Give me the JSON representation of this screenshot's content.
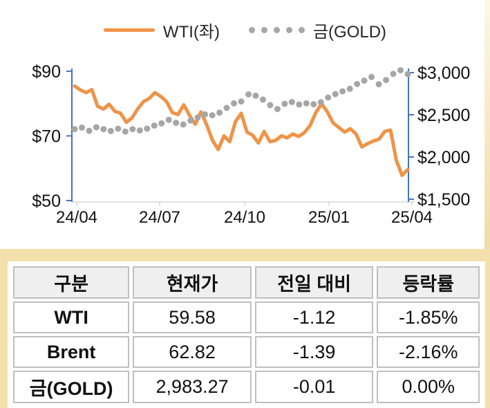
{
  "legend": {
    "wti_label": "WTI(좌)",
    "gold_label": "금(GOLD)"
  },
  "chart_data": {
    "type": "line",
    "x_axis": {
      "tick_labels": [
        "24/04",
        "24/07",
        "24/10",
        "25/01",
        "25/04"
      ]
    },
    "left_axis": {
      "label_series": "WTI(좌)",
      "min": 50,
      "max": 90,
      "tick_labels": [
        "$90",
        "$70",
        "$50"
      ],
      "tick_values": [
        90,
        70,
        50
      ]
    },
    "right_axis": {
      "label_series": "금(GOLD)",
      "min": 1500,
      "max": 3000,
      "tick_labels": [
        "$3,000",
        "$2,500",
        "$2,000",
        "$1,500"
      ],
      "tick_values": [
        3000,
        2500,
        2000,
        1500
      ]
    },
    "series": [
      {
        "name": "WTI(좌)",
        "style": "solid-line",
        "axis": "left",
        "color": "#ef9347",
        "values": [
          85.4,
          84.2,
          83.4,
          84.3,
          79.2,
          78.3,
          79.8,
          77.6,
          77.0,
          74.2,
          75.6,
          78.4,
          80.6,
          81.6,
          83.4,
          82.2,
          80.6,
          77.2,
          76.6,
          79.6,
          76.4,
          73.6,
          77.4,
          73.4,
          68.6,
          65.8,
          70.0,
          68.2,
          74.4,
          77.0,
          71.2,
          70.2,
          67.8,
          71.4,
          68.2,
          68.6,
          70.0,
          69.4,
          70.6,
          69.8,
          71.0,
          73.2,
          77.2,
          80.0,
          77.4,
          74.0,
          72.6,
          71.2,
          72.2,
          70.6,
          66.6,
          67.6,
          68.4,
          69.0,
          71.4,
          71.8,
          62.5,
          57.8,
          59.58
        ]
      },
      {
        "name": "금(GOLD)",
        "style": "dotted",
        "axis": "right",
        "color": "#a6a6a6",
        "values": [
          2330,
          2348,
          2310,
          2352,
          2330,
          2308,
          2335,
          2302,
          2330,
          2315,
          2335,
          2372,
          2398,
          2440,
          2405,
          2385,
          2432,
          2470,
          2505,
          2495,
          2525,
          2582,
          2635,
          2658,
          2742,
          2726,
          2680,
          2615,
          2568,
          2630,
          2652,
          2622,
          2636,
          2625,
          2648,
          2705,
          2745,
          2778,
          2808,
          2865,
          2905,
          2948,
          2862,
          2912,
          2985,
          3028,
          2983
        ]
      }
    ],
    "axis_color": "#4472c4",
    "baseline_color": "#d9d9d9",
    "text_color": "#111111"
  },
  "table": {
    "headers": [
      "구분",
      "현재가",
      "전일 대비",
      "등락률"
    ],
    "rows": [
      {
        "name": "WTI",
        "price": "59.58",
        "change": "-1.12",
        "pct": "-1.85%"
      },
      {
        "name": "Brent",
        "price": "62.82",
        "change": "-1.39",
        "pct": "-2.16%"
      },
      {
        "name": "금(GOLD)",
        "price": "2,983.27",
        "change": "-0.01",
        "pct": "0.00%"
      }
    ]
  },
  "colors": {
    "wti_line": "#ef9347",
    "gold_dot": "#a6a6a6",
    "axis_blue": "#4472c4",
    "cream": "#f4e0ac",
    "header_bg": "#efefef",
    "border_gray": "#bfbfbf"
  }
}
